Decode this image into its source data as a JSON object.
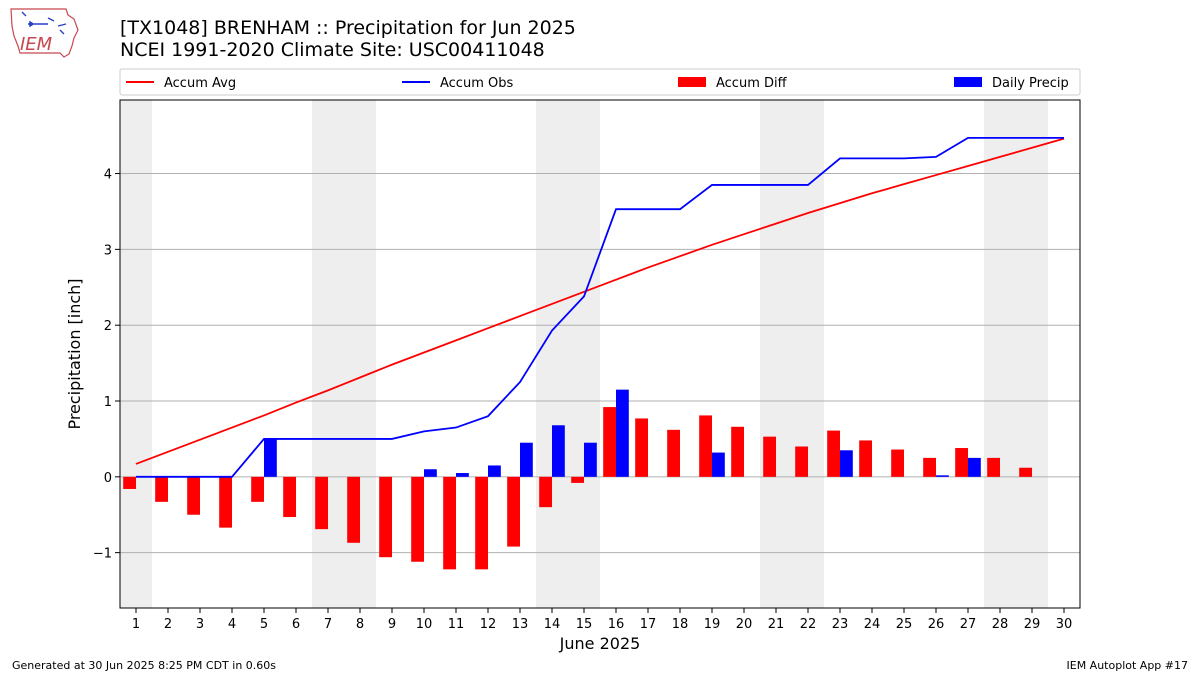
{
  "header": {
    "logo_text": "IEM",
    "title_line1": "[TX1048] BRENHAM :: Precipitation for Jun 2025",
    "title_line2": "NCEI 1991-2020 Climate Site: USC00411048"
  },
  "footer": {
    "left": "Generated at 30 Jun 2025 8:25 PM CDT in 0.60s",
    "right": "IEM Autoplot App #17"
  },
  "colors": {
    "avg": "#ff0000",
    "obs": "#0000ff",
    "diff": "#ff0000",
    "daily": "#0000ff",
    "weekend_shade": "#eeeeee",
    "grid": "#b0b0b0"
  },
  "chart_data": {
    "type": "bar",
    "xlabel": "June 2025",
    "ylabel": "Precipitation [inch]",
    "xlim": [
      0.5,
      30.5
    ],
    "ylim": [
      -1.73,
      4.97
    ],
    "yticks": [
      -1,
      0,
      1,
      2,
      3,
      4
    ],
    "ytick_labels": [
      "−1",
      "0",
      "1",
      "2",
      "3",
      "4"
    ],
    "grid": "horizontal",
    "legend_position": "top, above plot",
    "legend": [
      {
        "label": "Accum Avg",
        "kind": "line",
        "color": "#ff0000"
      },
      {
        "label": "Accum Obs",
        "kind": "line",
        "color": "#0000ff"
      },
      {
        "label": "Accum Diff",
        "kind": "bar",
        "color": "#ff0000"
      },
      {
        "label": "Daily Precip",
        "kind": "bar",
        "color": "#0000ff"
      }
    ],
    "shaded_day_ranges": [
      [
        0.5,
        1.5
      ],
      [
        6.5,
        8.5
      ],
      [
        13.5,
        15.5
      ],
      [
        20.5,
        22.5
      ],
      [
        27.5,
        29.5
      ]
    ],
    "x": [
      1,
      2,
      3,
      4,
      5,
      6,
      7,
      8,
      9,
      10,
      11,
      12,
      13,
      14,
      15,
      16,
      17,
      18,
      19,
      20,
      21,
      22,
      23,
      24,
      25,
      26,
      27,
      28,
      29,
      30
    ],
    "series": [
      {
        "name": "Accum Avg",
        "type": "line",
        "values": [
          0.17,
          0.33,
          0.49,
          0.65,
          0.81,
          0.98,
          1.14,
          1.31,
          1.48,
          1.64,
          1.8,
          1.96,
          2.12,
          2.28,
          2.44,
          2.6,
          2.76,
          2.91,
          3.06,
          3.2,
          3.34,
          3.48,
          3.61,
          3.74,
          3.86,
          3.98,
          4.1,
          4.22,
          4.34,
          4.46
        ]
      },
      {
        "name": "Accum Obs",
        "type": "line",
        "values": [
          0.0,
          0.0,
          0.0,
          0.0,
          0.5,
          0.5,
          0.5,
          0.5,
          0.5,
          0.6,
          0.65,
          0.8,
          1.25,
          1.93,
          2.38,
          3.53,
          3.53,
          3.53,
          3.85,
          3.85,
          3.85,
          3.85,
          4.2,
          4.2,
          4.2,
          4.22,
          4.47,
          4.47,
          4.47,
          4.47
        ]
      },
      {
        "name": "Accum Diff",
        "type": "bar",
        "values": [
          -0.16,
          -0.33,
          -0.5,
          -0.67,
          -0.33,
          -0.53,
          -0.69,
          -0.87,
          -1.06,
          -1.12,
          -1.22,
          -1.22,
          -0.92,
          -0.4,
          -0.08,
          0.92,
          0.77,
          0.62,
          0.81,
          0.66,
          0.53,
          0.4,
          0.61,
          0.48,
          0.36,
          0.25,
          0.38,
          0.25,
          0.12,
          0.0
        ]
      },
      {
        "name": "Daily Precip",
        "type": "bar",
        "values": [
          0.0,
          0.0,
          0.0,
          0.0,
          0.5,
          0.0,
          0.0,
          0.0,
          0.0,
          0.1,
          0.05,
          0.15,
          0.45,
          0.68,
          0.45,
          1.15,
          0.0,
          0.0,
          0.32,
          0.0,
          0.0,
          0.0,
          0.35,
          0.0,
          0.0,
          0.02,
          0.25,
          0.0,
          0.0,
          0.0
        ]
      }
    ]
  }
}
